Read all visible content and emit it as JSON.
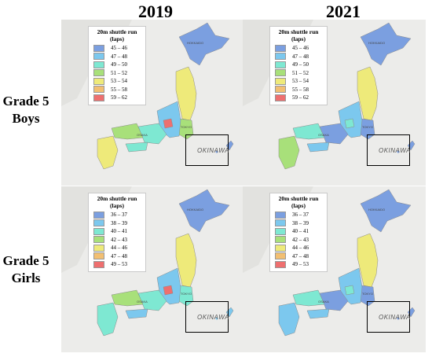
{
  "columns": [
    "2019",
    "2021"
  ],
  "rows": [
    {
      "line1": "Grade 5",
      "line2": "Boys"
    },
    {
      "line1": "Grade 5",
      "line2": "Girls"
    }
  ],
  "legends": {
    "boys": {
      "title": "20m shuttle run",
      "subtitle": "(laps)",
      "items": [
        {
          "label": "45 – 46",
          "color": "#7b9fe0"
        },
        {
          "label": "47 – 48",
          "color": "#7cc8ee"
        },
        {
          "label": "49 – 50",
          "color": "#7ee8d2"
        },
        {
          "label": "51 – 52",
          "color": "#a8e07a"
        },
        {
          "label": "53 – 54",
          "color": "#eeea7a"
        },
        {
          "label": "55 – 58",
          "color": "#f2bf72"
        },
        {
          "label": "59 – 62",
          "color": "#ee6f6f"
        }
      ]
    },
    "girls": {
      "title": "20m shuttle run",
      "subtitle": "(laps)",
      "items": [
        {
          "label": "36 – 37",
          "color": "#7b9fe0"
        },
        {
          "label": "38 – 39",
          "color": "#7cc8ee"
        },
        {
          "label": "40 – 41",
          "color": "#7ee8d2"
        },
        {
          "label": "42 – 43",
          "color": "#a8e07a"
        },
        {
          "label": "44 – 46",
          "color": "#eeea7a"
        },
        {
          "label": "47 – 48",
          "color": "#f2bf72"
        },
        {
          "label": "49 – 53",
          "color": "#ee6f6f"
        }
      ]
    }
  },
  "inset_label": "OKINAWA",
  "place_labels": {
    "north": "HOKKAIDO",
    "east": "TOKYO",
    "west": "OSAKA"
  },
  "panels": [
    {
      "legend": "boys",
      "col": 0,
      "row": 0,
      "hokkaido": "#7b9fe0",
      "tohoku": "#eeea7a",
      "kanto": "#a8e07a",
      "chubu": "#7cc8ee",
      "kansai": "#7ee8d2",
      "west": "#a8e07a",
      "kyushu": "#eeea7a",
      "shikoku": "#7ee8d2",
      "hot": "#ee6f6f",
      "okinawa": "#7b9fe0"
    },
    {
      "legend": "boys",
      "col": 1,
      "row": 0,
      "hokkaido": "#7b9fe0",
      "tohoku": "#eeea7a",
      "kanto": "#7b9fe0",
      "chubu": "#7cc8ee",
      "kansai": "#7b9fe0",
      "west": "#7ee8d2",
      "kyushu": "#a8e07a",
      "shikoku": "#7cc8ee",
      "hot": "#7ee8d2",
      "okinawa": "#7b9fe0"
    },
    {
      "legend": "girls",
      "col": 0,
      "row": 1,
      "hokkaido": "#7b9fe0",
      "tohoku": "#eeea7a",
      "kanto": "#7ee8d2",
      "chubu": "#7cc8ee",
      "kansai": "#7ee8d2",
      "west": "#a8e07a",
      "kyushu": "#7ee8d2",
      "shikoku": "#7cc8ee",
      "hot": "#ee6f6f",
      "okinawa": "#7cc8ee"
    },
    {
      "legend": "girls",
      "col": 1,
      "row": 1,
      "hokkaido": "#7b9fe0",
      "tohoku": "#eeea7a",
      "kanto": "#7b9fe0",
      "chubu": "#7cc8ee",
      "kansai": "#7b9fe0",
      "west": "#7ee8d2",
      "kyushu": "#7cc8ee",
      "shikoku": "#7cc8ee",
      "hot": "#7ee8d2",
      "okinawa": "#7b9fe0"
    }
  ]
}
